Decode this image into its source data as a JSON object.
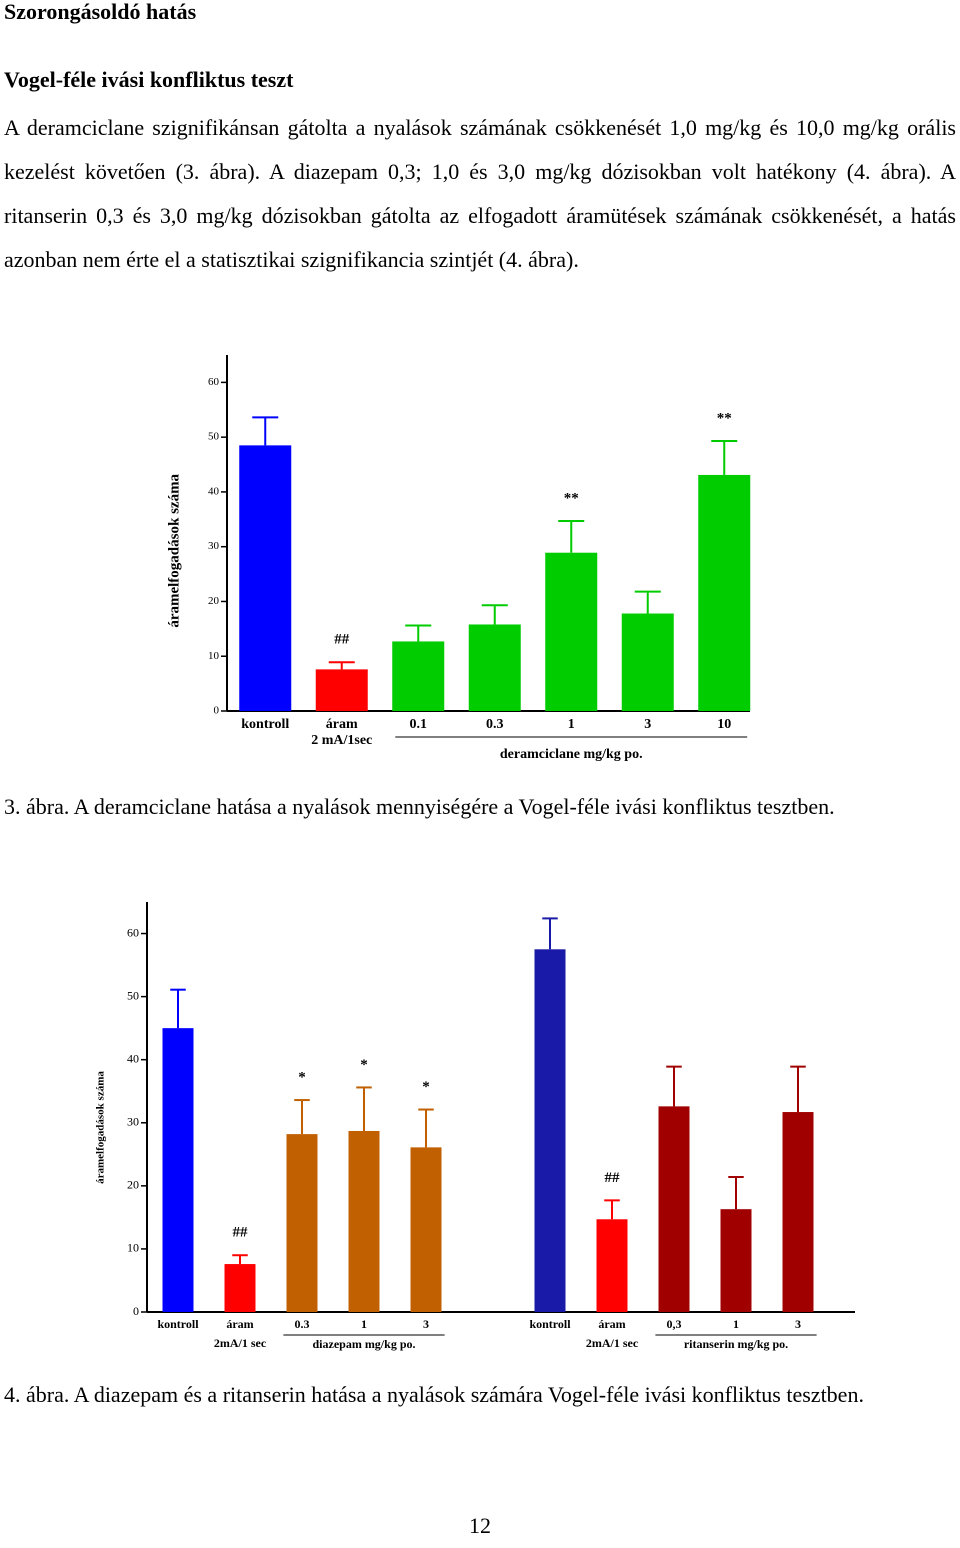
{
  "heading": "Szorongásoldó hatás",
  "subheading": "Vogel-féle ivási konfliktus teszt",
  "paragraph": "A deramciclane szignifikánsan gátolta a nyalások számának csökkenését 1,0 mg/kg és 10,0 mg/kg orális kezelést követően (3. ábra). A diazepam 0,3; 1,0 és 3,0 mg/kg dózisokban volt hatékony (4. ábra). A ritanserin 0,3 és 3,0 mg/kg dózisokban gátolta az elfogadott áramütések számának csökkenését, a hatás azonban nem érte el a statisztikai szignifikancia szintjét (4. ábra).",
  "chart_data": [
    {
      "type": "bar",
      "ylabel": "áramelfogadások száma",
      "categories": [
        "kontroll",
        "áram",
        "0.1",
        "0.3",
        "1",
        "3",
        "10"
      ],
      "values": [
        48.5,
        7.6,
        12.7,
        15.8,
        28.9,
        17.8,
        43.1
      ],
      "errors": [
        5.1,
        1.3,
        2.9,
        3.5,
        5.8,
        4.0,
        6.2
      ],
      "colors": [
        "#0000ff",
        "#ff0000",
        "#00cc00",
        "#00cc00",
        "#00cc00",
        "#00cc00",
        "#00cc00"
      ],
      "significance": [
        null,
        "##",
        null,
        null,
        "**",
        null,
        "**"
      ],
      "groups": [
        {
          "label": "2 mA/1sec",
          "from": 1,
          "to": 1
        },
        {
          "label": "deramciclane mg/kg po.",
          "from": 2,
          "to": 6
        }
      ],
      "ylim": [
        0,
        65
      ],
      "yticks": [
        0,
        10,
        20,
        30,
        40,
        50,
        60
      ]
    },
    {
      "type": "bar",
      "ylabel": "áramelfogadások száma",
      "categories": [
        "kontroll",
        "áram",
        "0.3",
        "1",
        "3",
        null,
        "kontroll",
        "áram",
        "0,3",
        "1",
        "3"
      ],
      "values": [
        45.0,
        7.6,
        28.2,
        28.7,
        26.1,
        null,
        57.5,
        14.7,
        32.6,
        16.3,
        31.7
      ],
      "errors": [
        6.1,
        1.4,
        5.4,
        6.9,
        6.0,
        null,
        4.9,
        3.0,
        6.3,
        5.1,
        7.2
      ],
      "colors": [
        "#0000ff",
        "#ff0000",
        "#c06000",
        "#c06000",
        "#c06000",
        null,
        "#1a1aa8",
        "#ff0000",
        "#a00000",
        "#a00000",
        "#a00000"
      ],
      "significance": [
        null,
        "##",
        "*",
        "*",
        "*",
        null,
        null,
        "##",
        null,
        null,
        null
      ],
      "groups": [
        {
          "label": "2mA/1 sec",
          "from": 1,
          "to": 1
        },
        {
          "label": "diazepam mg/kg po.",
          "from": 2,
          "to": 4
        },
        {
          "label": "2mA/1 sec",
          "from": 7,
          "to": 7
        },
        {
          "label": "ritanserin mg/kg po.",
          "from": 8,
          "to": 10
        }
      ],
      "ylim": [
        0,
        65
      ],
      "yticks": [
        0,
        10,
        20,
        30,
        40,
        50,
        60
      ]
    }
  ],
  "captions": [
    "3. ábra. A deramciclane hatása a nyalások mennyiségére a Vogel-féle ivási konfliktus tesztben.",
    "4. ábra. A diazepam és a ritanserin hatása a nyalások számára Vogel-féle ivási konfliktus tesztben."
  ],
  "page_number": "12"
}
